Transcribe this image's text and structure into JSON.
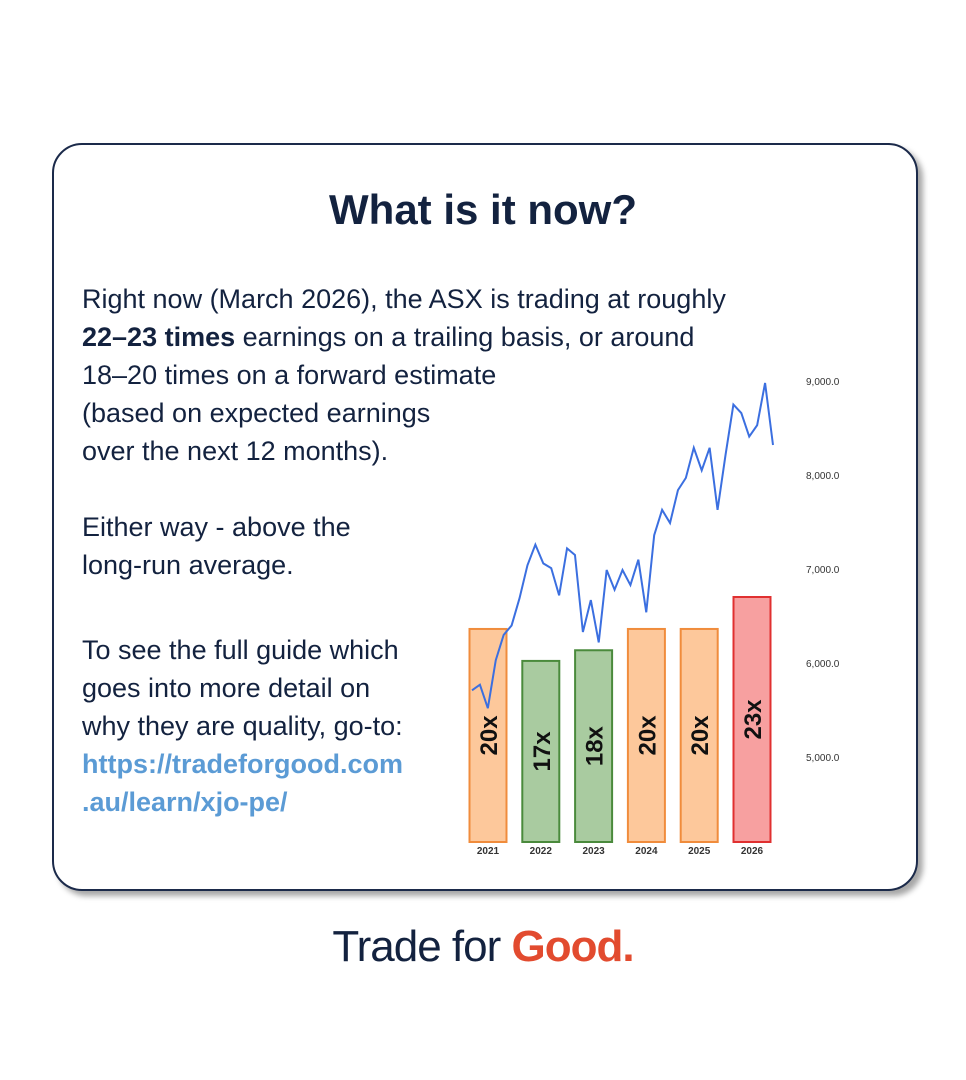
{
  "card": {
    "title": "What is it now?",
    "intro": {
      "line1": "Right now (March 2026), the ASX is trading at roughly",
      "bold": "22–23 times",
      "line2_rest": "earnings on a trailing basis, or around",
      "lines": [
        "18–20 times on a forward estimate",
        "(based on expected earnings",
        "over the next 12 months)."
      ]
    },
    "either": [
      "Either way - above the",
      "long-run average."
    ],
    "guide": [
      "To see the full guide which",
      "goes into more detail on",
      "why they are quality, go-to:"
    ],
    "link": [
      "https://tradeforgood.com",
      ".au/learn/xjo-pe/"
    ]
  },
  "chart_data": {
    "type": "bar",
    "categories": [
      "2021",
      "2022",
      "2023",
      "2024",
      "2025",
      "2026"
    ],
    "values": [
      20,
      17,
      18,
      20,
      20,
      23
    ],
    "value_labels": [
      "20x",
      "17x",
      "18x",
      "20x",
      "20x",
      "23x"
    ],
    "colors": [
      "#fdc89b",
      "#a9cba0",
      "#a9cba0",
      "#fdc89b",
      "#fdc89b",
      "#f7a0a0"
    ],
    "stroke_colors": [
      "#f08c3c",
      "#4a8a3c",
      "#4a8a3c",
      "#f08c3c",
      "#f08c3c",
      "#e03030"
    ],
    "line": {
      "color": "#3b6fe0",
      "values": [
        5720,
        5780,
        5530,
        6040,
        6310,
        6410,
        6700,
        7050,
        7270,
        7070,
        7020,
        6730,
        7230,
        7160,
        6340,
        6680,
        6230,
        7000,
        6790,
        7000,
        6840,
        7110,
        6550,
        7370,
        7640,
        7500,
        7850,
        7980,
        8300,
        8060,
        8300,
        7640,
        8220,
        8760,
        8670,
        8420,
        8540,
        8990,
        8330
      ]
    },
    "ylim": [
      5000,
      9000
    ],
    "yticks": [
      {
        "value": 5000,
        "label": "5,000.0"
      },
      {
        "value": 6000,
        "label": "6,000.0"
      },
      {
        "value": 7000,
        "label": "7,000.0"
      },
      {
        "value": 8000,
        "label": "8,000.0"
      },
      {
        "value": 9000,
        "label": "9,000.0"
      }
    ]
  },
  "footer": {
    "brand": "Trade for",
    "brand_accent": "Good."
  }
}
